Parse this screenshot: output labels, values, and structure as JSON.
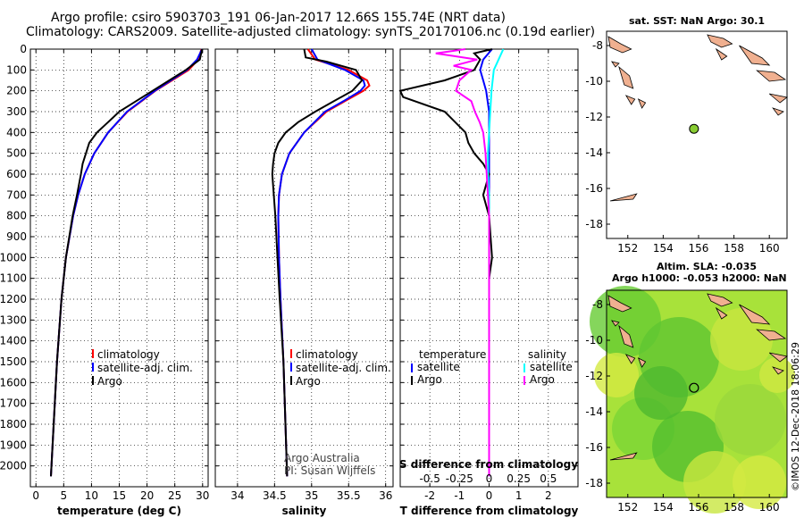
{
  "header": {
    "line1": "Argo profile: csiro 5903703_191 06-Jan-2017 12.66S 155.74E (NRT data)",
    "line2": "Climatology: CARS2009. Satellite-adjusted climatology: synTS_20170106.nc (0.19d earlier)"
  },
  "credit": {
    "line1": "Argo Australia",
    "line2": "PI: Susan Wijffels"
  },
  "stamp": "©IMOS 12-Dec-2018 18:06:29",
  "colors": {
    "climatology": "#ff0000",
    "satellite": "#0000ff",
    "argo": "#000000",
    "sat_salinity": "#00ffff",
    "argo_salinity": "#ff00ff",
    "land": "#f0b090"
  },
  "chart_data": [
    {
      "type": "line",
      "xlabel": "temperature (deg C)",
      "xlim": [
        -1,
        31
      ],
      "ylim": [
        2100,
        0
      ],
      "xticks": [
        0,
        5,
        10,
        15,
        20,
        25,
        30
      ],
      "yticks": [
        0,
        100,
        200,
        300,
        400,
        500,
        600,
        700,
        800,
        900,
        1000,
        1100,
        1200,
        1300,
        1400,
        1500,
        1600,
        1700,
        1800,
        1900,
        2000
      ],
      "legend": [
        "climatology",
        "satellite-adj. clim.",
        "Argo"
      ],
      "series": [
        {
          "name": "climatology",
          "depth": [
            0,
            50,
            100,
            150,
            200,
            250,
            300,
            400,
            500,
            600,
            700,
            800,
            1000,
            1200,
            1500,
            2050
          ],
          "values": [
            29.8,
            29.2,
            27.5,
            24.5,
            21.5,
            19.0,
            16.5,
            13.0,
            10.5,
            8.8,
            7.6,
            6.7,
            5.4,
            4.6,
            3.8,
            2.7
          ]
        },
        {
          "name": "satellite-adj. clim.",
          "depth": [
            0,
            50,
            100,
            150,
            200,
            250,
            300,
            400,
            500,
            600,
            700,
            800,
            1000,
            1200,
            1500,
            2050
          ],
          "values": [
            29.9,
            29.0,
            27.2,
            24.3,
            21.4,
            18.9,
            16.4,
            13.0,
            10.5,
            8.8,
            7.6,
            6.7,
            5.4,
            4.6,
            3.8,
            2.7
          ]
        },
        {
          "name": "Argo",
          "depth": [
            0,
            50,
            100,
            150,
            200,
            250,
            300,
            350,
            400,
            450,
            500,
            550,
            600,
            700,
            800,
            1000,
            1200,
            1500,
            2050
          ],
          "values": [
            29.9,
            29.5,
            27.0,
            24.0,
            21.0,
            18.0,
            15.0,
            13.0,
            11.0,
            9.6,
            9.0,
            8.4,
            8.1,
            7.4,
            6.6,
            5.4,
            4.6,
            3.8,
            2.7
          ]
        }
      ]
    },
    {
      "type": "line",
      "xlabel": "salinity",
      "xlim": [
        33.7,
        36.1
      ],
      "ylim": [
        2100,
        0
      ],
      "xticks": [
        34,
        34.5,
        35,
        35.5,
        36
      ],
      "xticklabels": [
        "34",
        "34.5",
        "35",
        "35.5",
        "36"
      ],
      "legend": [
        "climatology",
        "satellite-adj. clim.",
        "Argo"
      ],
      "series": [
        {
          "name": "climatology",
          "depth": [
            0,
            50,
            100,
            150,
            175,
            200,
            250,
            300,
            400,
            500,
            600,
            700,
            800,
            1000,
            1200,
            1500,
            2050
          ],
          "values": [
            34.95,
            35.05,
            35.5,
            35.75,
            35.78,
            35.7,
            35.45,
            35.2,
            34.9,
            34.7,
            34.6,
            34.56,
            34.55,
            34.56,
            34.58,
            34.62,
            34.67
          ]
        },
        {
          "name": "satellite-adj. clim.",
          "depth": [
            0,
            50,
            100,
            150,
            175,
            200,
            250,
            300,
            400,
            500,
            600,
            700,
            800,
            1000,
            1200,
            1500,
            2050
          ],
          "values": [
            35.0,
            35.08,
            35.45,
            35.7,
            35.72,
            35.66,
            35.43,
            35.18,
            34.9,
            34.7,
            34.6,
            34.56,
            34.55,
            34.56,
            34.58,
            34.62,
            34.67
          ]
        },
        {
          "name": "Argo",
          "depth": [
            0,
            40,
            60,
            100,
            150,
            200,
            250,
            300,
            350,
            400,
            450,
            500,
            550,
            600,
            700,
            800,
            1000,
            1200,
            1500,
            2050
          ],
          "values": [
            34.9,
            34.92,
            35.2,
            35.6,
            35.68,
            35.55,
            35.3,
            35.05,
            34.82,
            34.65,
            34.55,
            34.5,
            34.48,
            34.47,
            34.49,
            34.51,
            34.54,
            34.57,
            34.62,
            34.67
          ]
        }
      ]
    },
    {
      "type": "line",
      "xlabel": "T difference from climatology",
      "xlabel2": "S difference from climatology",
      "xlim": [
        -3,
        3
      ],
      "ylim": [
        2100,
        0
      ],
      "xticks": [
        -2,
        -1,
        0,
        1,
        2
      ],
      "x2ticklabels": [
        "-0.5",
        "-0.25",
        "0",
        "0.25",
        "0.5"
      ],
      "legend_temperature": [
        "temperature",
        "satellite",
        "Argo"
      ],
      "legend_salinity": [
        "salinity",
        "satellite",
        "Argo"
      ],
      "series": [
        {
          "name": "temperature satellite",
          "depth": [
            0,
            50,
            100,
            150,
            200,
            300,
            400,
            500,
            600,
            700,
            800,
            1000,
            1500,
            2050
          ],
          "values": [
            0.1,
            -0.2,
            -0.3,
            -0.2,
            -0.1,
            0.0,
            0.0,
            0.0,
            0.0,
            0.0,
            0.0,
            0.0,
            0.0,
            0.0
          ]
        },
        {
          "name": "temperature Argo",
          "depth": [
            0,
            20,
            50,
            100,
            150,
            200,
            230,
            300,
            400,
            450,
            500,
            550,
            600,
            700,
            800,
            1000,
            1100,
            1500,
            2050
          ],
          "values": [
            0.1,
            -0.5,
            -0.3,
            -0.5,
            -1.5,
            -3.0,
            -2.9,
            -1.5,
            -0.8,
            -0.7,
            -0.5,
            -0.2,
            0.0,
            -0.2,
            0.0,
            0.1,
            0.0,
            0.0,
            0.0
          ]
        },
        {
          "name": "salinity satellite",
          "depth": [
            0,
            50,
            100,
            200,
            300,
            400,
            500,
            600,
            700,
            800,
            1000,
            1500,
            2050
          ],
          "values": [
            0.12,
            0.08,
            0.04,
            0.02,
            0.01,
            0.0,
            -0.01,
            -0.01,
            0.0,
            0.0,
            0.0,
            0.0,
            0.0
          ]
        },
        {
          "name": "salinity Argo",
          "depth": [
            0,
            20,
            50,
            80,
            100,
            150,
            200,
            250,
            300,
            350,
            400,
            500,
            600,
            700,
            800,
            1000,
            1500,
            2050
          ],
          "values": [
            -0.2,
            -0.45,
            -0.1,
            -0.3,
            -0.15,
            -0.25,
            -0.28,
            -0.15,
            -0.12,
            -0.08,
            -0.05,
            -0.03,
            -0.02,
            -0.01,
            0.0,
            0.0,
            0.0,
            0.0
          ]
        }
      ]
    }
  ],
  "maps": [
    {
      "title": "sat. SST: NaN Argo: 30.1",
      "xlim": [
        150.8,
        161
      ],
      "ylim": [
        -18.8,
        -7.2
      ],
      "xticks": [
        152,
        154,
        156,
        158,
        160
      ],
      "yticks": [
        -8,
        -10,
        -12,
        -14,
        -16,
        -18
      ],
      "float_position": {
        "lon": 155.74,
        "lat": -12.66
      },
      "marker_color": "#88cc33"
    },
    {
      "title_line1": "Altim. SLA: -0.035",
      "title_line2": "Argo h1000: -0.053 h2000: NaN",
      "xlim": [
        150.8,
        161
      ],
      "ylim": [
        -18.8,
        -7.2
      ],
      "xticks": [
        152,
        154,
        156,
        158,
        160
      ],
      "yticks": [
        -8,
        -10,
        -12,
        -14,
        -16,
        -18
      ],
      "float_position": {
        "lon": 155.74,
        "lat": -12.66
      }
    }
  ]
}
